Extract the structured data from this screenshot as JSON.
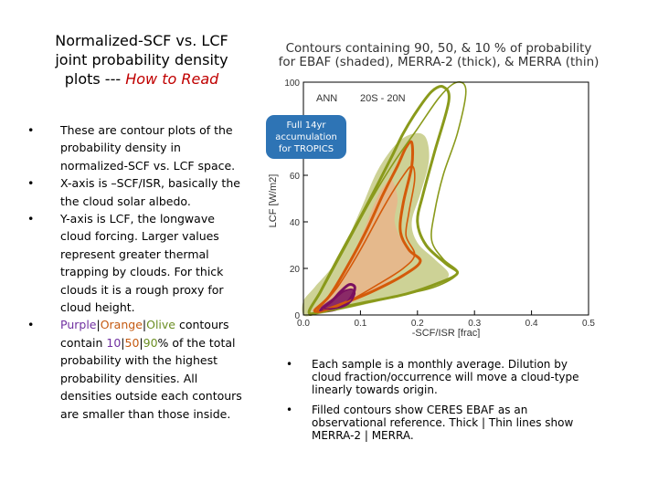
{
  "title": {
    "line1": "Normalized-SCF vs. LCF",
    "line2": "joint probability density",
    "line3_prefix": "plots --- ",
    "line3_highlight": "How to Read"
  },
  "left_bullets": {
    "b1": "These are contour plots of the probability density in normalized-SCF vs. LCF space.",
    "b2": "X-axis is –SCF/ISR, basically the the cloud solar albedo.",
    "b3": "Y-axis is LCF, the longwave cloud forcing. Larger values represent greater thermal trapping by clouds. For thick clouds it is a rough proxy for cloud height.",
    "b4_purple": "Purple",
    "b4_sep1": "|",
    "b4_orange": "Orange",
    "b4_sep2": "|",
    "b4_olive": "Olive",
    "b4_text1": " contours contain ",
    "b4_p10": "10",
    "b4_sep3": "|",
    "b4_p50": "50",
    "b4_sep4": "|",
    "b4_p90": "90",
    "b4_text2": "% of the total probability with the highest probability densities. All densities outside each contours are smaller than those inside."
  },
  "chart_title": {
    "line1": "Contours containing 90, 50, & 10 % of probability",
    "line2": "for EBAF (shaded), MERRA-2 (thick), & MERRA (thin)"
  },
  "callout": {
    "line1": "Full 14yr",
    "line2": "accumulation",
    "line3": "for TROPICS"
  },
  "right_bullets": {
    "b1": "Each sample is a monthly average. Dilution by cloud fraction/occurrence will move a cloud-type linearly towards origin.",
    "b2": "Filled contours show CERES EBAF as an observational reference. Thick | Thin lines show MERRA-2 | MERRA."
  },
  "chart_data": {
    "type": "contour",
    "annotation_season": "ANN",
    "annotation_region": "20S - 20N",
    "xlabel": "-SCF/ISR [frac]",
    "ylabel": "LCF [W/m2]",
    "xlim": [
      0.0,
      0.5
    ],
    "ylim": [
      0,
      100
    ],
    "xticks": [
      "0.0",
      "0.1",
      "0.2",
      "0.3",
      "0.4",
      "0.5"
    ],
    "yticks": [
      "0",
      "20",
      "40",
      "60",
      "80",
      "100"
    ],
    "colors": {
      "p90": "#8a9a1b",
      "p50": "#d45a0a",
      "p10": "#7a1060",
      "p90_fill": "#b8bf6a",
      "p50_fill": "#efae88"
    },
    "contours": [
      {
        "level": "90%",
        "dataset": "EBAF",
        "style": "shaded",
        "color": "p90",
        "points": [
          [
            0.0,
            0
          ],
          [
            0.0,
            6
          ],
          [
            0.02,
            12
          ],
          [
            0.06,
            24
          ],
          [
            0.1,
            45
          ],
          [
            0.13,
            62
          ],
          [
            0.165,
            74
          ],
          [
            0.195,
            78
          ],
          [
            0.215,
            76
          ],
          [
            0.22,
            66
          ],
          [
            0.205,
            52
          ],
          [
            0.19,
            40
          ],
          [
            0.2,
            31
          ],
          [
            0.23,
            24
          ],
          [
            0.255,
            17
          ],
          [
            0.22,
            12
          ],
          [
            0.15,
            7
          ],
          [
            0.08,
            3
          ],
          [
            0.02,
            0
          ]
        ]
      },
      {
        "level": "50%",
        "dataset": "EBAF",
        "style": "shaded",
        "color": "p50",
        "points": [
          [
            0.015,
            2
          ],
          [
            0.04,
            7
          ],
          [
            0.07,
            18
          ],
          [
            0.1,
            33
          ],
          [
            0.125,
            48
          ],
          [
            0.14,
            55
          ],
          [
            0.155,
            58
          ],
          [
            0.165,
            50
          ],
          [
            0.16,
            40
          ],
          [
            0.175,
            31
          ],
          [
            0.195,
            25
          ],
          [
            0.17,
            19
          ],
          [
            0.13,
            11
          ],
          [
            0.08,
            5
          ],
          [
            0.04,
            2
          ]
        ]
      },
      {
        "level": "10%",
        "dataset": "EBAF",
        "style": "shaded",
        "color": "p10",
        "points": [
          [
            0.03,
            3
          ],
          [
            0.05,
            7
          ],
          [
            0.075,
            11
          ],
          [
            0.09,
            10
          ],
          [
            0.085,
            6
          ],
          [
            0.065,
            3
          ],
          [
            0.045,
            2
          ]
        ]
      },
      {
        "level": "90%",
        "dataset": "MERRA-2",
        "style": "thick",
        "color": "p90",
        "points": [
          [
            0.01,
            1
          ],
          [
            0.03,
            10
          ],
          [
            0.06,
            24
          ],
          [
            0.1,
            42
          ],
          [
            0.13,
            56
          ],
          [
            0.155,
            68
          ],
          [
            0.175,
            78
          ],
          [
            0.2,
            88
          ],
          [
            0.225,
            96
          ],
          [
            0.245,
            98
          ],
          [
            0.255,
            92
          ],
          [
            0.23,
            70
          ],
          [
            0.21,
            52
          ],
          [
            0.2,
            40
          ],
          [
            0.215,
            30
          ],
          [
            0.25,
            22
          ],
          [
            0.27,
            18
          ],
          [
            0.24,
            14
          ],
          [
            0.18,
            9
          ],
          [
            0.1,
            5
          ],
          [
            0.04,
            2
          ]
        ]
      },
      {
        "level": "50%",
        "dataset": "MERRA-2",
        "style": "thick",
        "color": "p50",
        "points": [
          [
            0.02,
            2
          ],
          [
            0.045,
            8
          ],
          [
            0.075,
            20
          ],
          [
            0.11,
            36
          ],
          [
            0.14,
            52
          ],
          [
            0.165,
            64
          ],
          [
            0.18,
            72
          ],
          [
            0.19,
            74
          ],
          [
            0.19,
            64
          ],
          [
            0.175,
            48
          ],
          [
            0.17,
            36
          ],
          [
            0.185,
            28
          ],
          [
            0.205,
            23
          ],
          [
            0.175,
            17
          ],
          [
            0.12,
            10
          ],
          [
            0.07,
            5
          ],
          [
            0.035,
            2
          ]
        ]
      },
      {
        "level": "10%",
        "dataset": "MERRA-2",
        "style": "thick",
        "color": "p10",
        "points": [
          [
            0.03,
            2
          ],
          [
            0.05,
            6
          ],
          [
            0.065,
            10
          ],
          [
            0.08,
            13
          ],
          [
            0.09,
            12
          ],
          [
            0.085,
            8
          ],
          [
            0.07,
            4
          ],
          [
            0.05,
            2
          ]
        ]
      },
      {
        "level": "90%",
        "dataset": "MERRA",
        "style": "thin",
        "color": "p90",
        "points": [
          [
            0.01,
            1
          ],
          [
            0.04,
            14
          ],
          [
            0.08,
            32
          ],
          [
            0.12,
            50
          ],
          [
            0.16,
            66
          ],
          [
            0.2,
            80
          ],
          [
            0.24,
            94
          ],
          [
            0.27,
            100
          ],
          [
            0.285,
            96
          ],
          [
            0.27,
            78
          ],
          [
            0.245,
            60
          ],
          [
            0.23,
            44
          ],
          [
            0.225,
            32
          ],
          [
            0.245,
            24
          ],
          [
            0.27,
            18
          ],
          [
            0.23,
            12
          ],
          [
            0.16,
            8
          ],
          [
            0.09,
            4
          ],
          [
            0.03,
            1
          ]
        ]
      },
      {
        "level": "50%",
        "dataset": "MERRA",
        "style": "thin",
        "color": "p50",
        "points": [
          [
            0.025,
            2
          ],
          [
            0.06,
            12
          ],
          [
            0.1,
            28
          ],
          [
            0.14,
            46
          ],
          [
            0.17,
            58
          ],
          [
            0.19,
            64
          ],
          [
            0.195,
            58
          ],
          [
            0.185,
            44
          ],
          [
            0.18,
            34
          ],
          [
            0.195,
            26
          ],
          [
            0.175,
            20
          ],
          [
            0.13,
            13
          ],
          [
            0.08,
            6
          ],
          [
            0.04,
            2
          ]
        ]
      },
      {
        "level": "10%",
        "dataset": "MERRA",
        "style": "thin",
        "color": "p10",
        "points": [
          [
            0.035,
            3
          ],
          [
            0.055,
            7
          ],
          [
            0.07,
            10
          ],
          [
            0.085,
            11
          ],
          [
            0.09,
            9
          ],
          [
            0.08,
            5
          ],
          [
            0.06,
            3
          ]
        ]
      }
    ]
  }
}
